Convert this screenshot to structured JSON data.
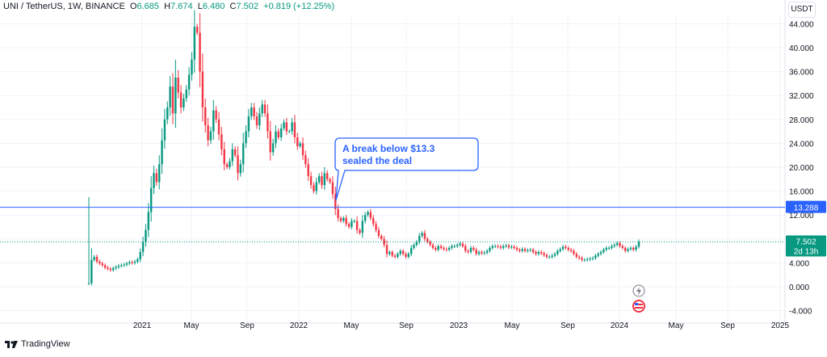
{
  "legend": {
    "symbol": "UNI / TetherUS, 1W, BINANCE",
    "open_label": "O",
    "open": "6.685",
    "high_label": "H",
    "high": "7.674",
    "low_label": "L",
    "low": "6.480",
    "close_label": "C",
    "close": "7.502",
    "change": "+0.819 (+12.25%)"
  },
  "unit": "USDT",
  "branding": "TradingView",
  "annotation": {
    "line1": "A break below $13.3",
    "line2": "sealed the deal"
  },
  "level_label": "13.288",
  "price_label": "7.502",
  "countdown_label": "2d 13h",
  "colors": {
    "up": "#089981",
    "down": "#f23645",
    "level": "#2962ff",
    "price": "#089981",
    "grid": "#f0f3fa"
  },
  "icons": [
    "lightning-icon",
    "us-flag-icon"
  ],
  "chart_data": {
    "type": "candlestick",
    "interval": "1W",
    "ylim": [
      -4,
      46
    ],
    "y_ticks": [
      -4,
      0,
      4,
      8,
      12,
      16,
      20,
      24,
      28,
      32,
      36,
      40,
      44
    ],
    "y_tick_labels": [
      "-4.000",
      "0.000",
      "4.000",
      "8.000",
      "12.000",
      "16.000",
      "20.000",
      "24.000",
      "28.000",
      "32.000",
      "36.000",
      "40.000",
      "44.000"
    ],
    "x_ticks": [
      "2021",
      "May",
      "Sep",
      "2022",
      "May",
      "Sep",
      "2023",
      "May",
      "Sep",
      "2024",
      "May",
      "Sep",
      "2025"
    ],
    "horizontal_level": 13.288,
    "current_price": 7.502,
    "close_series": [
      0.6,
      4.5,
      5.0,
      4.2,
      3.9,
      3.6,
      3.2,
      3.0,
      2.8,
      3.1,
      3.3,
      3.5,
      3.6,
      3.7,
      3.9,
      4.1,
      4.0,
      4.2,
      4.6,
      5.8,
      7.5,
      9.5,
      12.5,
      16.5,
      19.0,
      17.5,
      20.5,
      24.5,
      28.0,
      30.0,
      33.5,
      29.0,
      35.0,
      32.5,
      30.0,
      31.5,
      33.0,
      35.5,
      38.0,
      43.5,
      42.5,
      36.0,
      30.0,
      27.0,
      24.5,
      26.0,
      29.5,
      28.0,
      25.5,
      23.0,
      20.5,
      20.0,
      21.0,
      23.0,
      22.0,
      19.0,
      20.5,
      24.0,
      26.0,
      28.5,
      30.0,
      28.5,
      27.0,
      29.0,
      30.5,
      29.0,
      26.0,
      22.5,
      24.0,
      26.0,
      25.0,
      26.5,
      27.5,
      26.0,
      26.0,
      27.5,
      25.0,
      23.5,
      24.0,
      22.0,
      20.5,
      18.5,
      17.0,
      16.0,
      17.5,
      18.5,
      17.0,
      19.0,
      18.0,
      17.5,
      15.5,
      13.0,
      11.5,
      11.0,
      11.5,
      10.5,
      10.0,
      11.0,
      11.0,
      9.5,
      9.0,
      11.0,
      12.0,
      12.5,
      11.5,
      10.5,
      9.5,
      8.5,
      8.0,
      7.0,
      5.5,
      5.8,
      5.2,
      5.0,
      5.5,
      6.0,
      5.5,
      5.0,
      5.5,
      6.5,
      7.0,
      7.5,
      8.5,
      9.0,
      8.0,
      7.5,
      7.0,
      6.5,
      6.2,
      6.8,
      6.5,
      6.3,
      6.2,
      6.5,
      6.8,
      6.8,
      7.0,
      7.2,
      6.8,
      6.0,
      5.8,
      6.5,
      6.2,
      5.5,
      5.8,
      5.6,
      5.7,
      6.0,
      6.5,
      6.8,
      6.8,
      6.7,
      6.5,
      6.8,
      6.9,
      6.6,
      6.7,
      6.5,
      6.2,
      6.0,
      6.3,
      6.0,
      6.1,
      6.2,
      5.8,
      5.5,
      5.8,
      5.6,
      5.3,
      5.0,
      5.0,
      5.2,
      5.5,
      6.0,
      6.3,
      6.7,
      6.5,
      6.2,
      6.0,
      5.5,
      5.0,
      4.8,
      4.5,
      4.5,
      4.6,
      4.7,
      4.8,
      5.2,
      5.5,
      5.8,
      6.2,
      6.5,
      6.5,
      6.8,
      7.0,
      7.3,
      6.8,
      6.5,
      6.0,
      6.3,
      6.5,
      6.2,
      6.7,
      7.502
    ]
  }
}
